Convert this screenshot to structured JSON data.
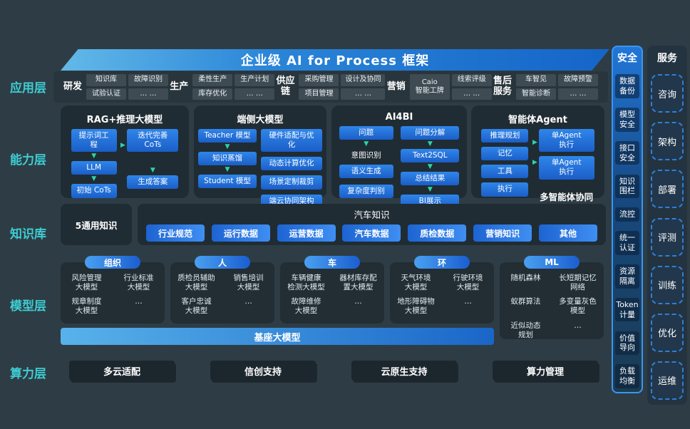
{
  "banner": {
    "title": "企业级 AI for Process 框架"
  },
  "layer_labels": [
    "应用层",
    "能力层",
    "知识库",
    "模型层",
    "算力层"
  ],
  "app": {
    "groups": [
      {
        "label": "研发",
        "cells": [
          "知识库",
          "故障识别",
          "试验认证",
          "… …"
        ]
      },
      {
        "label": "生产",
        "cells": [
          "柔性生产",
          "生产计划",
          "库存优化",
          "… …"
        ]
      },
      {
        "label": "供应\n链",
        "cells": [
          "采购管理",
          "设计及协同",
          "项目管理",
          "… …"
        ]
      },
      {
        "label": "营销",
        "cells": [
          "Caio\n智能工牌",
          "线索评级",
          "… …"
        ]
      },
      {
        "label": "售后\n服务",
        "cells": [
          "车智见",
          "故障预警",
          "智能诊断",
          "… …"
        ]
      }
    ]
  },
  "capability": {
    "boxes": [
      {
        "title": "RAG+推理大模型",
        "col1": [
          "提示词工\n程",
          "LLM",
          "初始 CoTs"
        ],
        "col2": [
          "迭代完善\nCoTs",
          "生成答案"
        ]
      },
      {
        "title": "端侧大模型",
        "col1": [
          "Teacher 模型",
          "知识蒸馏",
          "Student 模型"
        ],
        "col2": [
          "硬件适配与优\n化",
          "动态计算优化",
          "场景定制裁剪",
          "端云协同架构"
        ]
      },
      {
        "title": "AI4BI",
        "col1": [
          "问题",
          "意图识别",
          "语义生成",
          "复杂度判别"
        ],
        "col2": [
          "问题分解",
          "Text2SQL",
          "总结结果",
          "BI展示"
        ]
      },
      {
        "title": "智能体Agent",
        "col1": [
          "推理规划",
          "记忆",
          "工具",
          "执行"
        ],
        "col2": [
          "单Agent\n执行",
          "单Agent\n执行"
        ],
        "caption": "多智能体协同"
      }
    ]
  },
  "knowledge": {
    "general": "5通用知识",
    "auto_title": "汽车知识",
    "pills": [
      "行业规范",
      "运行数据",
      "运营数据",
      "汽车数据",
      "质检数据",
      "营销知识",
      "其他"
    ]
  },
  "model": {
    "groups": [
      {
        "name": "组织",
        "items": [
          "风险管理\n大模型",
          "行业标准\n大模型",
          "规章制度\n大模型",
          "…"
        ]
      },
      {
        "name": "人",
        "items": [
          "质检员辅助\n大模型",
          "销售培训\n大模型",
          "客户忠诚\n大模型",
          "…"
        ]
      },
      {
        "name": "车",
        "items": [
          "车辆健康\n检测大模型",
          "器材库存配\n置大模型",
          "故障维修\n大模型",
          "…"
        ]
      },
      {
        "name": "环",
        "items": [
          "天气环境\n大模型",
          "行驶环境\n大模型",
          "地形障碍物\n大模型",
          "…"
        ]
      },
      {
        "name": "ML",
        "items": [
          "随机森林",
          "长短期记忆\n网络",
          "蚁群算法",
          "多变量灰色\n模型",
          "近似动态\n规划",
          "…"
        ]
      }
    ],
    "foundation": "基座大模型"
  },
  "compute": {
    "items": [
      "多云适配",
      "信创支持",
      "云原生支持",
      "算力管理"
    ]
  },
  "security": {
    "title": "安全",
    "items": [
      "数据\n备份",
      "模型\n安全",
      "接口\n安全",
      "知识\n围栏",
      "流控",
      "统一\n认证",
      "资源\n隔离",
      "Token\n计量",
      "价值\n导向",
      "负载\n均衡"
    ]
  },
  "services": {
    "title": "服务",
    "items": [
      "咨询",
      "架构",
      "部署",
      "评测",
      "训练",
      "优化",
      "运维"
    ]
  },
  "colors": {
    "accent_cyan": "#3ecdd3",
    "accent_blue": "#2b7ce0",
    "arrow_teal": "#2bd4a8"
  }
}
